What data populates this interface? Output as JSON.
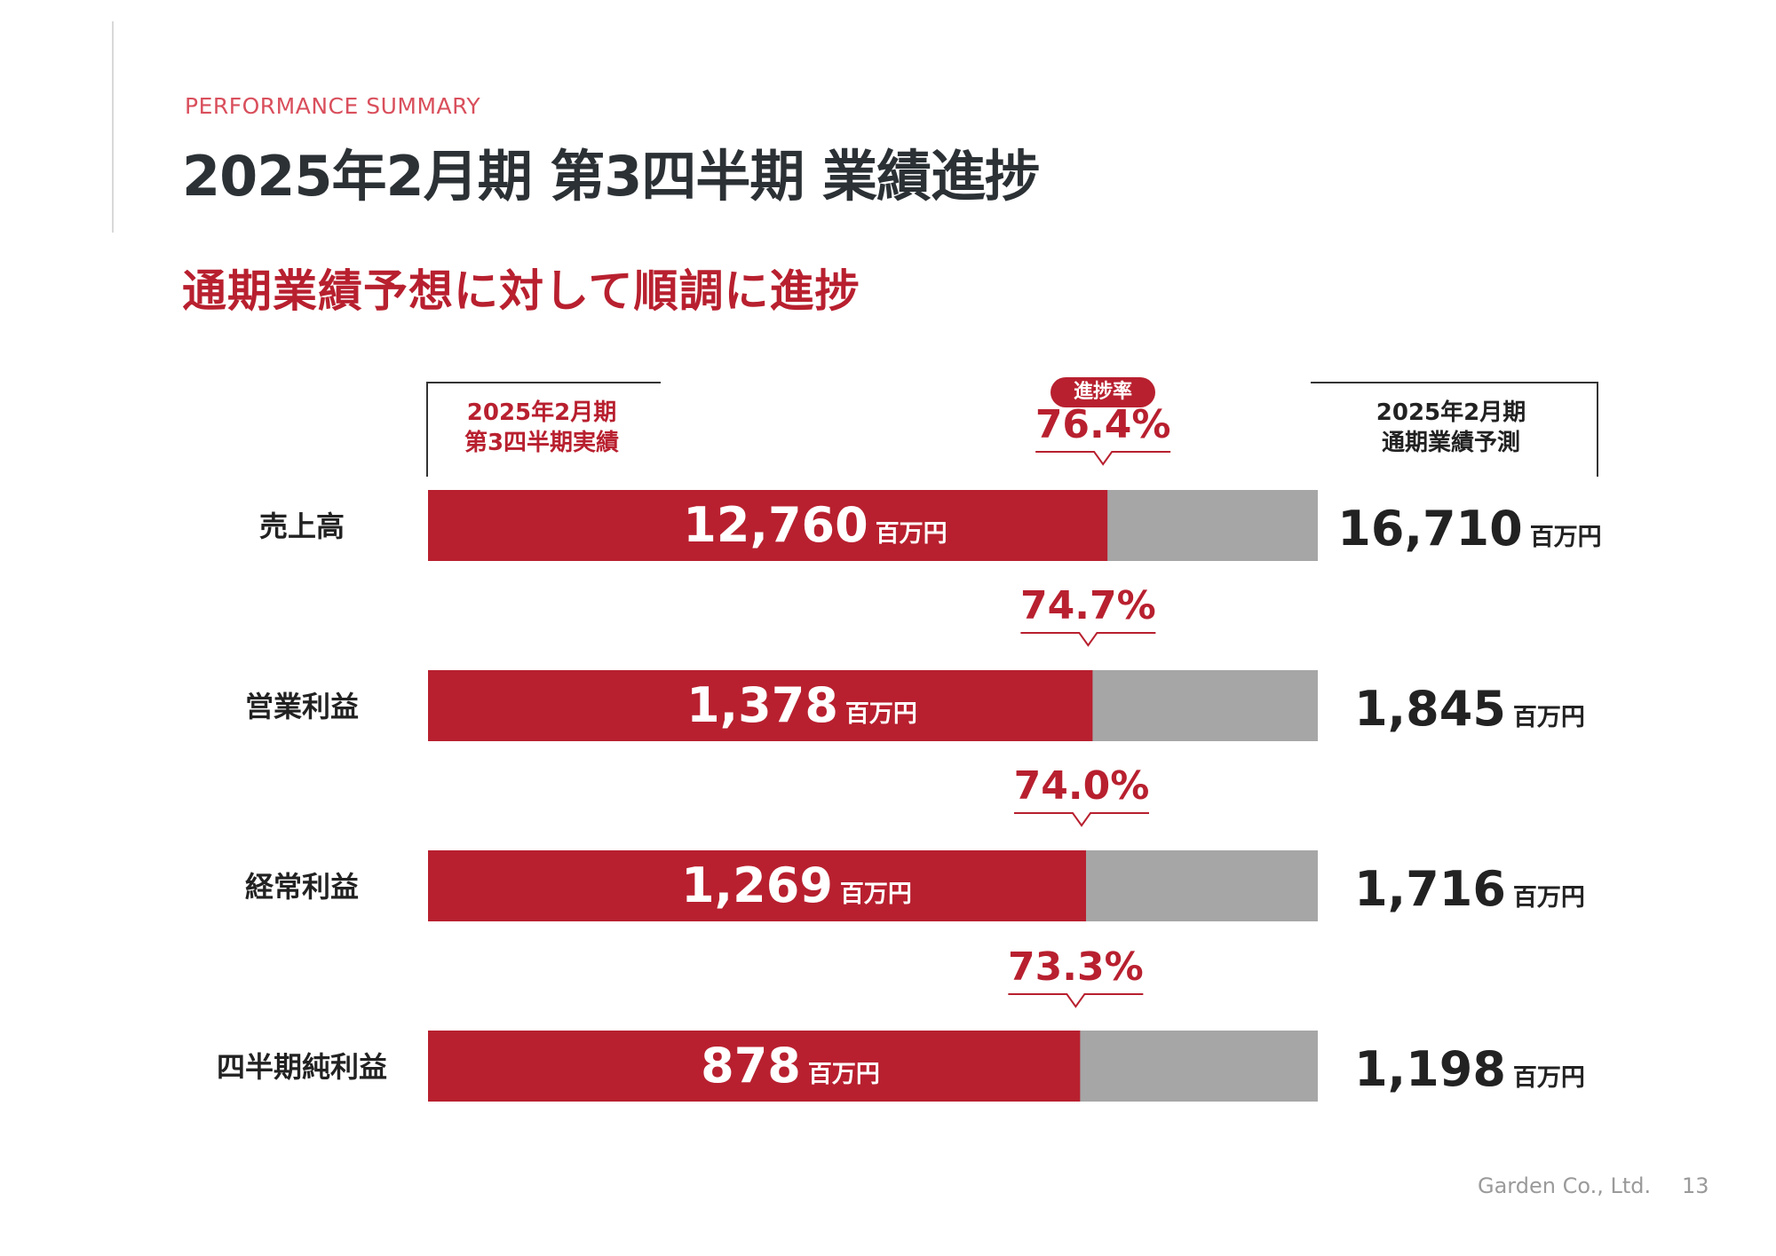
{
  "header": {
    "eyebrow": "PERFORMANCE SUMMARY",
    "title": "2025年2月期 第3四半期 業績進捗",
    "subtitle": "通期業績予想に対して順調に進捗"
  },
  "columns": {
    "actual_line1": "2025年2月期",
    "actual_line2": "第3四半期実績",
    "forecast_line1": "2025年2月期",
    "forecast_line2": "通期業績予測",
    "progress_badge": "進捗率"
  },
  "colors": {
    "accent": "#b8202f",
    "bar_remaining": "#a6a6a6",
    "text_dark": "#222222"
  },
  "chart_data": {
    "type": "bar",
    "orientation": "horizontal",
    "stacked": true,
    "categories": [
      "売上高",
      "営業利益",
      "経常利益",
      "四半期純利益"
    ],
    "unit": "百万円",
    "series": [
      {
        "name": "2025年2月期 第3四半期実績",
        "values": [
          12760,
          1378,
          1269,
          878
        ]
      },
      {
        "name": "2025年2月期 通期業績予測",
        "values": [
          16710,
          1845,
          1716,
          1198
        ]
      }
    ],
    "actual_labels": [
      "12,760",
      "1,378",
      "1,269",
      "878"
    ],
    "forecast_labels": [
      "16,710",
      "1,845",
      "1,716",
      "1,198"
    ],
    "progress_labels": [
      "76.4%",
      "74.7%",
      "74.0%",
      "73.3%"
    ],
    "progress_values": [
      76.4,
      74.7,
      74.0,
      73.3
    ]
  },
  "footer": {
    "company": "Garden Co., Ltd.",
    "page": "13"
  }
}
